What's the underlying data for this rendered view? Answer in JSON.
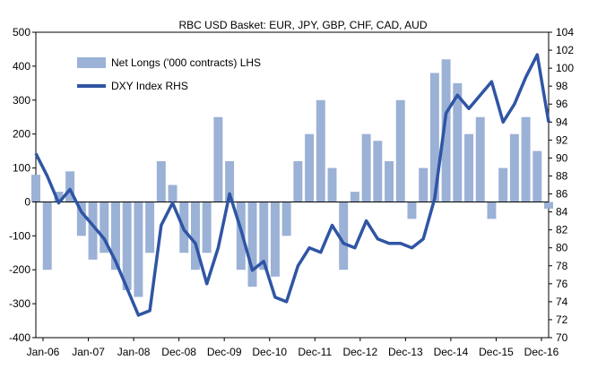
{
  "chart_data": {
    "type": "bar+line",
    "title": "RBC USD Basket: EUR, JPY, GBP, CHF, CAD, AUD",
    "x_tick_labels": [
      "Jan-06",
      "Jan-07",
      "Jan-08",
      "Dec-08",
      "Dec-09",
      "Dec-10",
      "Dec-11",
      "Dec-12",
      "Dec-13",
      "Dec-14",
      "Dec-15",
      "Dec-16"
    ],
    "x_domain": [
      "2006-01",
      "2017-04"
    ],
    "left_axis": {
      "min": -400,
      "max": 500,
      "ticks": [
        "500",
        "400",
        "300",
        "200",
        "100",
        "0",
        "-100",
        "-200",
        "-300",
        "-400"
      ]
    },
    "right_axis": {
      "min": 70,
      "max": 104,
      "ticks": [
        "104",
        "102",
        "100",
        "98",
        "96",
        "94",
        "92",
        "90",
        "88",
        "86",
        "84",
        "82",
        "80",
        "78",
        "76",
        "74",
        "72",
        "70"
      ]
    },
    "colors": {
      "bars": "#9bb1d6",
      "line": "#2f55a4"
    },
    "series": [
      {
        "name": "Net Longs ('000 contracts) LHS",
        "kind": "bar",
        "axis": "left",
        "x": [
          "2006-01",
          "2006-04",
          "2006-07",
          "2006-10",
          "2007-01",
          "2007-04",
          "2007-07",
          "2007-10",
          "2008-01",
          "2008-04",
          "2008-07",
          "2008-10",
          "2009-01",
          "2009-04",
          "2009-07",
          "2009-10",
          "2010-01",
          "2010-04",
          "2010-07",
          "2010-10",
          "2011-01",
          "2011-04",
          "2011-07",
          "2011-10",
          "2012-01",
          "2012-04",
          "2012-07",
          "2012-10",
          "2013-01",
          "2013-04",
          "2013-07",
          "2013-10",
          "2014-01",
          "2014-04",
          "2014-07",
          "2014-10",
          "2015-01",
          "2015-04",
          "2015-07",
          "2015-10",
          "2016-01",
          "2016-04",
          "2016-07",
          "2016-10",
          "2017-01",
          "2017-04"
        ],
        "values": [
          80,
          -200,
          30,
          90,
          -100,
          -170,
          -150,
          -200,
          -260,
          -280,
          -150,
          120,
          50,
          -150,
          -200,
          -150,
          250,
          120,
          -200,
          -250,
          -200,
          -220,
          -100,
          120,
          200,
          300,
          100,
          -200,
          30,
          200,
          180,
          120,
          300,
          -50,
          100,
          380,
          420,
          350,
          200,
          250,
          -50,
          100,
          200,
          250,
          150,
          -20
        ]
      },
      {
        "name": "DXY Index RHS",
        "kind": "line",
        "axis": "right",
        "x": [
          "2006-01",
          "2006-04",
          "2006-07",
          "2006-10",
          "2007-01",
          "2007-04",
          "2007-07",
          "2007-10",
          "2008-01",
          "2008-04",
          "2008-07",
          "2008-10",
          "2009-01",
          "2009-04",
          "2009-07",
          "2009-10",
          "2010-01",
          "2010-04",
          "2010-07",
          "2010-10",
          "2011-01",
          "2011-04",
          "2011-07",
          "2011-10",
          "2012-01",
          "2012-04",
          "2012-07",
          "2012-10",
          "2013-01",
          "2013-04",
          "2013-07",
          "2013-10",
          "2014-01",
          "2014-04",
          "2014-07",
          "2014-10",
          "2015-01",
          "2015-04",
          "2015-07",
          "2015-10",
          "2016-01",
          "2016-04",
          "2016-07",
          "2016-10",
          "2017-01",
          "2017-04"
        ],
        "values": [
          90.5,
          88,
          85,
          86.5,
          84,
          82.5,
          81,
          78.5,
          75.5,
          72.5,
          73,
          82.5,
          85,
          82,
          80.5,
          76,
          80,
          86,
          82,
          77.5,
          78.5,
          74.5,
          74,
          78,
          80,
          79.5,
          82.5,
          80.5,
          80,
          83,
          81,
          80.5,
          80.5,
          80,
          81,
          85.5,
          95,
          97,
          95.5,
          97,
          98.5,
          94,
          96,
          99,
          101.5,
          94
        ]
      }
    ],
    "legend": {
      "position": "top-left"
    }
  }
}
